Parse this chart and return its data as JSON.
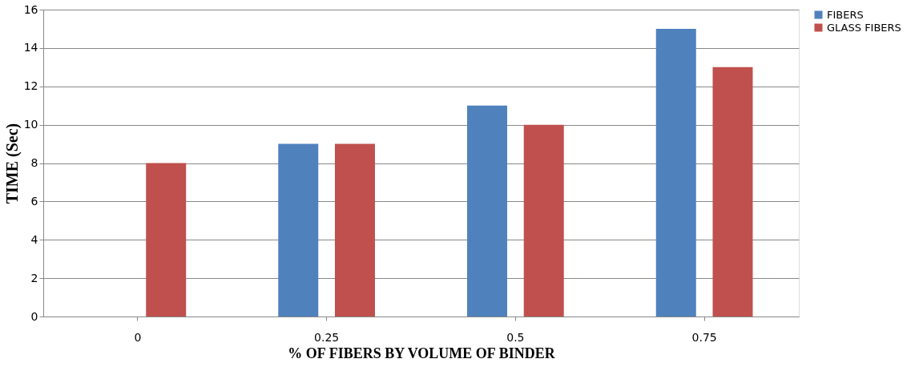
{
  "chart_data": {
    "type": "bar",
    "xlabel": "% OF FIBERS BY VOLUME OF BINDER",
    "ylabel": "TIME (Sec)",
    "categories": [
      "0",
      "0.25",
      "0.5",
      "0.75"
    ],
    "series": [
      {
        "name": "FIBERS",
        "color": "#4f81bd",
        "values": [
          null,
          9,
          11,
          15
        ]
      },
      {
        "name": "GLASS FIBERS",
        "color": "#c0504d",
        "values": [
          8,
          9,
          10,
          13
        ]
      }
    ],
    "ylim": [
      0,
      16
    ],
    "yticks": [
      0,
      2,
      4,
      6,
      8,
      10,
      12,
      14,
      16
    ],
    "grid": "y",
    "legend": "right"
  }
}
